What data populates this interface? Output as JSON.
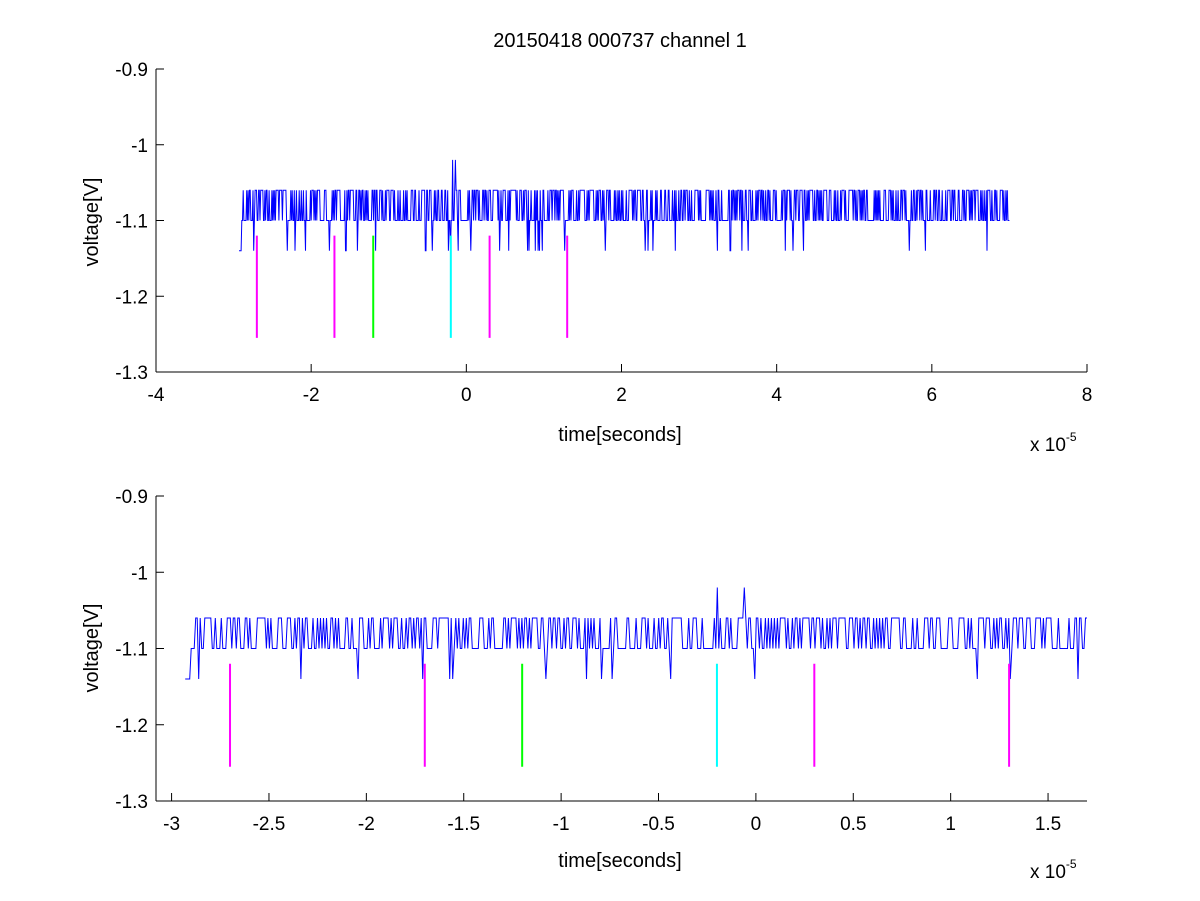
{
  "title": "20150418 000737 channel 1",
  "colors": {
    "trace": "#0000ff",
    "magenta": "#ff00ff",
    "green": "#00ff00",
    "cyan": "#00ffff",
    "axis": "#000000"
  },
  "chart_data": [
    {
      "type": "line",
      "title": "20150418 000737 channel 1",
      "xlabel": "time[seconds]",
      "ylabel": "voltage[V]",
      "x_scale_label": "x 10",
      "x_scale_exponent": "-5",
      "xlim": [
        -4,
        8
      ],
      "ylim": [
        -1.3,
        -0.9
      ],
      "xticks": [
        "-4",
        "-2",
        "0",
        "2",
        "4",
        "6",
        "8"
      ],
      "xtick_values": [
        -4,
        -2,
        0,
        2,
        4,
        6,
        8
      ],
      "yticks": [
        "-0.9",
        "-1",
        "-1.1",
        "-1.2",
        "-1.3"
      ],
      "ytick_values": [
        -0.9,
        -1.0,
        -1.1,
        -1.2,
        -1.3
      ],
      "grid": false,
      "series": [
        {
          "color": "#0000ff",
          "x_range": [
            -2.93,
            7.0
          ],
          "baseline": -1.1,
          "high": -1.06,
          "low": -1.14,
          "peaks": [
            {
              "x": -0.18,
              "y": -1.02
            },
            {
              "x": -0.14,
              "y": -1.02
            }
          ]
        }
      ],
      "markers": [
        {
          "x": -2.7,
          "color": "magenta",
          "y_top": -1.12,
          "y_bottom": -1.255
        },
        {
          "x": -1.7,
          "color": "magenta",
          "y_top": -1.12,
          "y_bottom": -1.255
        },
        {
          "x": -1.2,
          "color": "green",
          "y_top": -1.12,
          "y_bottom": -1.255
        },
        {
          "x": -0.2,
          "color": "cyan",
          "y_top": -1.12,
          "y_bottom": -1.255
        },
        {
          "x": 0.3,
          "color": "magenta",
          "y_top": -1.12,
          "y_bottom": -1.255
        },
        {
          "x": 1.3,
          "color": "magenta",
          "y_top": -1.12,
          "y_bottom": -1.255
        }
      ]
    },
    {
      "type": "line",
      "title": "",
      "xlabel": "time[seconds]",
      "ylabel": "voltage[V]",
      "x_scale_label": "x 10",
      "x_scale_exponent": "-5",
      "xlim": [
        -3.08,
        1.7
      ],
      "ylim": [
        -1.3,
        -0.9
      ],
      "xticks": [
        "-3",
        "-2.5",
        "-2",
        "-1.5",
        "-1",
        "-0.5",
        "0",
        "0.5",
        "1",
        "1.5"
      ],
      "xtick_values": [
        -3,
        -2.5,
        -2,
        -1.5,
        -1,
        -0.5,
        0,
        0.5,
        1,
        1.5
      ],
      "yticks": [
        "-0.9",
        "-1",
        "-1.1",
        "-1.2",
        "-1.3"
      ],
      "ytick_values": [
        -0.9,
        -1.0,
        -1.1,
        -1.2,
        -1.3
      ],
      "grid": false,
      "series": [
        {
          "color": "#0000ff",
          "x_range": [
            -2.93,
            1.7
          ],
          "baseline": -1.1,
          "high": -1.06,
          "low": -1.14,
          "peaks": [
            {
              "x": -0.2,
              "y": -1.02
            },
            {
              "x": -0.06,
              "y": -1.02
            }
          ]
        }
      ],
      "markers": [
        {
          "x": -2.7,
          "color": "magenta",
          "y_top": -1.12,
          "y_bottom": -1.255
        },
        {
          "x": -1.7,
          "color": "magenta",
          "y_top": -1.12,
          "y_bottom": -1.255
        },
        {
          "x": -1.2,
          "color": "green",
          "y_top": -1.12,
          "y_bottom": -1.255
        },
        {
          "x": -0.2,
          "color": "cyan",
          "y_top": -1.12,
          "y_bottom": -1.255
        },
        {
          "x": 0.3,
          "color": "magenta",
          "y_top": -1.12,
          "y_bottom": -1.255
        },
        {
          "x": 1.3,
          "color": "magenta",
          "y_top": -1.12,
          "y_bottom": -1.255
        }
      ]
    }
  ]
}
